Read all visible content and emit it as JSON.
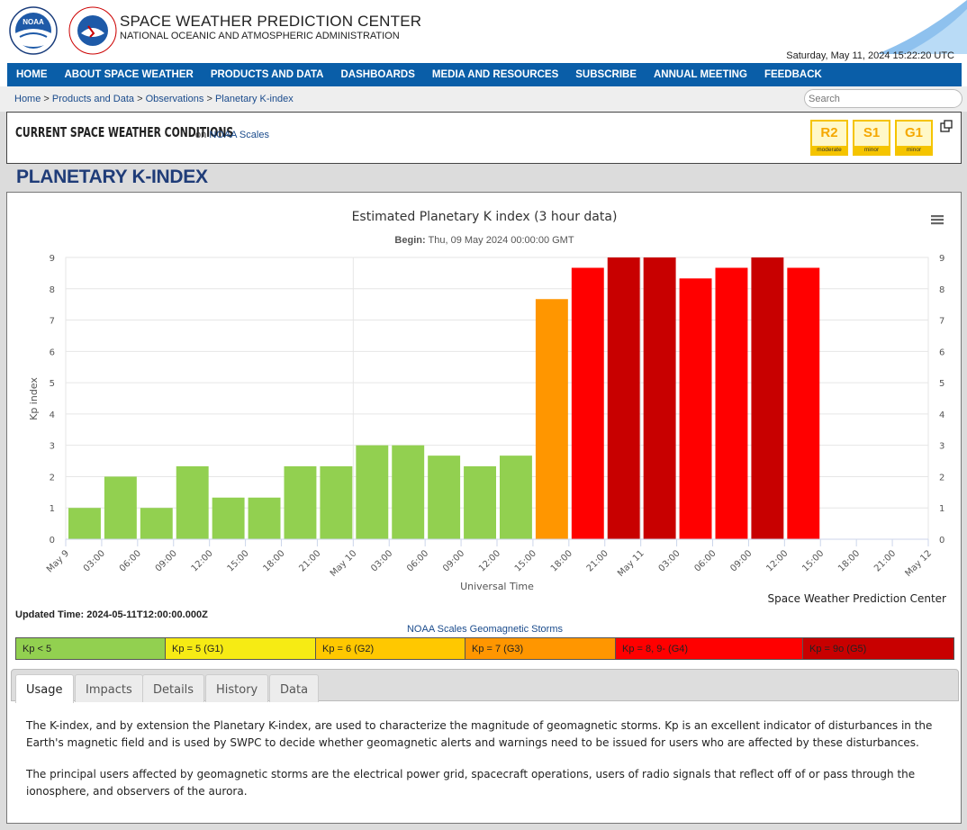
{
  "header": {
    "title": "SPACE WEATHER PREDICTION CENTER",
    "subtitle": "NATIONAL OCEANIC AND ATMOSPHERIC ADMINISTRATION",
    "datetime": "Saturday, May 11, 2024 15:22:20 UTC",
    "noaa_logo_text": "NOAA",
    "nws_logo_text": "NATIONAL WEATHER SERVICE"
  },
  "nav": {
    "items": [
      "HOME",
      "ABOUT SPACE WEATHER",
      "PRODUCTS AND DATA",
      "DASHBOARDS",
      "MEDIA AND RESOURCES",
      "SUBSCRIBE",
      "ANNUAL MEETING",
      "FEEDBACK"
    ]
  },
  "breadcrumb": {
    "items": [
      "Home",
      "Products and Data",
      "Observations",
      "Planetary K-index"
    ],
    "separator": ">"
  },
  "search": {
    "placeholder": "Search"
  },
  "conditions": {
    "title": "CURRENT SPACE WEATHER CONDITIONS",
    "on_text": "on",
    "link": "NOAA Scales",
    "scales": [
      {
        "level": "R2",
        "label": "moderate"
      },
      {
        "level": "S1",
        "label": "minor"
      },
      {
        "level": "G1",
        "label": "minor"
      }
    ]
  },
  "page_title": "PLANETARY K-INDEX",
  "chart_menu_icon": "hamburger-menu-icon",
  "chart_data": {
    "type": "bar",
    "title": "Estimated Planetary K index (3 hour data)",
    "subtitle_label": "Begin:",
    "subtitle_value": "Thu, 09 May 2024 00:00:00 GMT",
    "xlabel": "Universal Time",
    "ylabel": "Kp index",
    "ylim": [
      0,
      9
    ],
    "yticks": [
      0,
      1,
      2,
      3,
      4,
      5,
      6,
      7,
      8,
      9
    ],
    "x_tick_labels": [
      "May 9",
      "03:00",
      "06:00",
      "09:00",
      "12:00",
      "15:00",
      "18:00",
      "21:00",
      "May 10",
      "03:00",
      "06:00",
      "09:00",
      "12:00",
      "15:00",
      "18:00",
      "21:00",
      "May 11",
      "03:00",
      "06:00",
      "09:00",
      "12:00",
      "15:00",
      "18:00",
      "21:00",
      "May 12"
    ],
    "categories": [
      "2024-05-09 00:00",
      "2024-05-09 03:00",
      "2024-05-09 06:00",
      "2024-05-09 09:00",
      "2024-05-09 12:00",
      "2024-05-09 15:00",
      "2024-05-09 18:00",
      "2024-05-09 21:00",
      "2024-05-10 00:00",
      "2024-05-10 03:00",
      "2024-05-10 06:00",
      "2024-05-10 09:00",
      "2024-05-10 12:00",
      "2024-05-10 15:00",
      "2024-05-10 18:00",
      "2024-05-10 21:00",
      "2024-05-11 00:00",
      "2024-05-11 03:00",
      "2024-05-11 06:00",
      "2024-05-11 09:00",
      "2024-05-11 12:00"
    ],
    "values": [
      1.0,
      2.0,
      1.0,
      2.33,
      1.33,
      1.33,
      2.33,
      2.33,
      3.0,
      3.0,
      2.67,
      2.33,
      2.67,
      7.67,
      8.67,
      9.0,
      9.0,
      8.33,
      8.67,
      9.0,
      8.67
    ],
    "grid": true,
    "credit": "Space Weather Prediction Center",
    "colors": {
      "below_5": "#92d050",
      "kp5": "#f6eb14",
      "kp6": "#ffc800",
      "kp7": "#ff9600",
      "kp8_9minus": "#ff0000",
      "kp9o": "#c80000"
    }
  },
  "updated": "Updated Time: 2024-05-11T12:00:00.000Z",
  "legend": {
    "title": "NOAA Scales Geomagnetic Storms",
    "items": [
      {
        "label": "Kp < 5",
        "color": "#92d050"
      },
      {
        "label": "Kp = 5 (G1)",
        "color": "#f6eb14"
      },
      {
        "label": "Kp = 6 (G2)",
        "color": "#ffc800"
      },
      {
        "label": "Kp = 7 (G3)",
        "color": "#ff9600"
      },
      {
        "label": "Kp = 8, 9- (G4)",
        "color": "#ff0000"
      },
      {
        "label": "Kp = 9o (G5)",
        "color": "#c80000"
      }
    ]
  },
  "tabs": [
    "Usage",
    "Impacts",
    "Details",
    "History",
    "Data"
  ],
  "active_tab": "Usage",
  "usage_text": [
    "The K-index, and by extension the Planetary K-index, are used to characterize the magnitude of geomagnetic storms. Kp is an excellent indicator of disturbances in the Earth's magnetic field and is used by SWPC to decide whether geomagnetic alerts and warnings need to be issued for users who are affected by these disturbances.",
    "The principal users affected by geomagnetic storms are the electrical power grid, spacecraft operations, users of radio signals that reflect off of or pass through the ionosphere, and observers of the aurora."
  ]
}
